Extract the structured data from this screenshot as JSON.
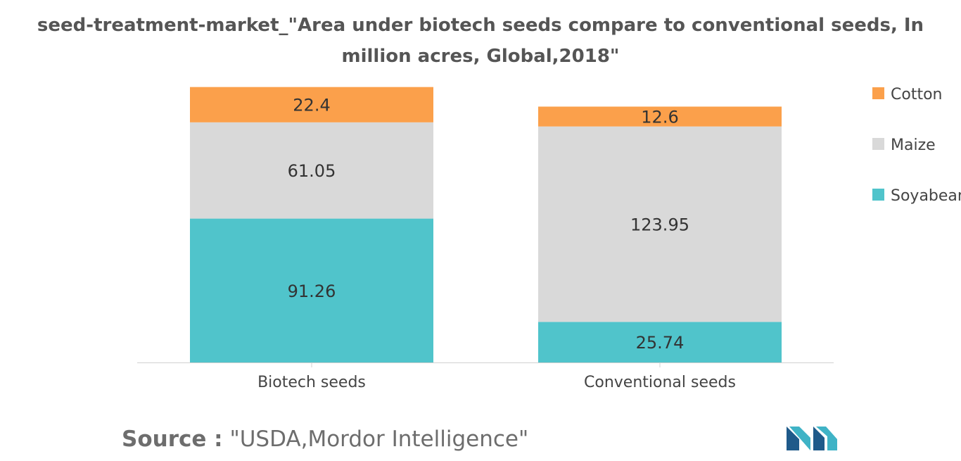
{
  "chart_data": {
    "type": "bar",
    "stacked": true,
    "title": "seed-treatment-market_\"Area under biotech seeds compare to conventional seeds, In million acres, Global,2018\"",
    "categories": [
      "Biotech seeds",
      "Conventional seeds"
    ],
    "series": [
      {
        "name": "Soyabean",
        "color": "#50c4cb",
        "values": [
          91.26,
          25.74
        ],
        "labels": [
          "91.26",
          "25.74"
        ]
      },
      {
        "name": "Maize",
        "color": "#d9d9d9",
        "values": [
          61.05,
          123.95
        ],
        "labels": [
          "61.05",
          "123.95"
        ]
      },
      {
        "name": "Cotton",
        "color": "#fba04b",
        "values": [
          22.4,
          12.6
        ],
        "labels": [
          "22.4",
          "12.6"
        ]
      }
    ],
    "legend_order": [
      "Cotton",
      "Maize",
      "Soyabean"
    ],
    "legend_position": "right",
    "xlabel": "",
    "ylabel": "",
    "ylim": [
      0,
      175
    ],
    "grid": false
  },
  "source": {
    "label": "Source :",
    "text": "\"USDA,Mordor Intelligence\""
  }
}
